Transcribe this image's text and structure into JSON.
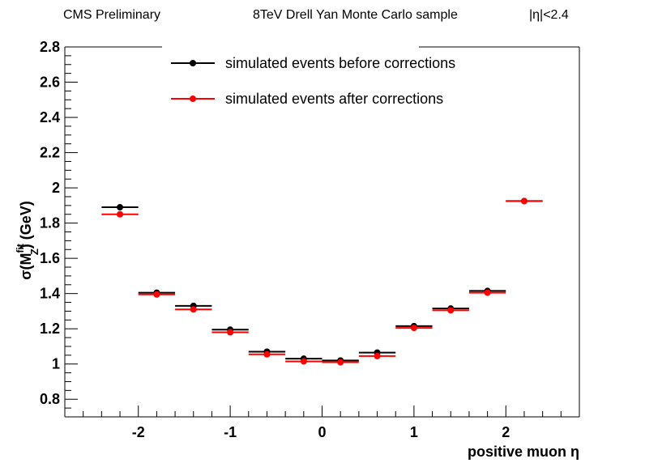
{
  "header": {
    "left": "CMS Preliminary",
    "center": "8TeV Drell Yan Monte Carlo sample",
    "right": "|η|<2.4"
  },
  "chart_data": {
    "type": "scatter",
    "xlabel": "positive muon η",
    "ylabel": "σ(M_Z^fit) (GeV)",
    "ylabel_parts": {
      "pre": "σ(M",
      "sup": "fit",
      "sub": "Z",
      "post": ") (GeV)"
    },
    "xlim": [
      -2.8,
      2.8
    ],
    "ylim": [
      0.7,
      2.8
    ],
    "x_ticks": [
      -2,
      -1,
      0,
      1,
      2
    ],
    "y_ticks": [
      0.8,
      1.0,
      1.2,
      1.4,
      1.6,
      1.8,
      2.0,
      2.2,
      2.4,
      2.6,
      2.8
    ],
    "x_tick_labels": [
      "-2",
      "-1",
      "0",
      "1",
      "2"
    ],
    "y_tick_labels": [
      "0.8",
      "1",
      "1.2",
      "1.4",
      "1.6",
      "1.8",
      "2",
      "2.2",
      "2.4",
      "2.6",
      "2.8"
    ],
    "bin_edges": [
      -2.4,
      -2.0,
      -1.6,
      -1.2,
      -0.8,
      -0.4,
      0.0,
      0.4,
      0.8,
      1.2,
      1.6,
      2.0,
      2.4
    ],
    "x": [
      -2.2,
      -1.8,
      -1.4,
      -1.0,
      -0.6,
      -0.2,
      0.2,
      0.6,
      1.0,
      1.4,
      1.8,
      2.2
    ],
    "series": [
      {
        "name": "simulated events before corrections",
        "color": "#000000",
        "values": [
          1.89,
          1.405,
          1.33,
          1.195,
          1.07,
          1.03,
          1.02,
          1.065,
          1.215,
          1.315,
          1.415,
          1.925
        ]
      },
      {
        "name": "simulated events after corrections",
        "color": "#ff0000",
        "values": [
          1.85,
          1.395,
          1.31,
          1.18,
          1.055,
          1.015,
          1.01,
          1.045,
          1.205,
          1.305,
          1.405,
          1.925
        ]
      }
    ],
    "legend_position": "top-center",
    "grid": false
  }
}
